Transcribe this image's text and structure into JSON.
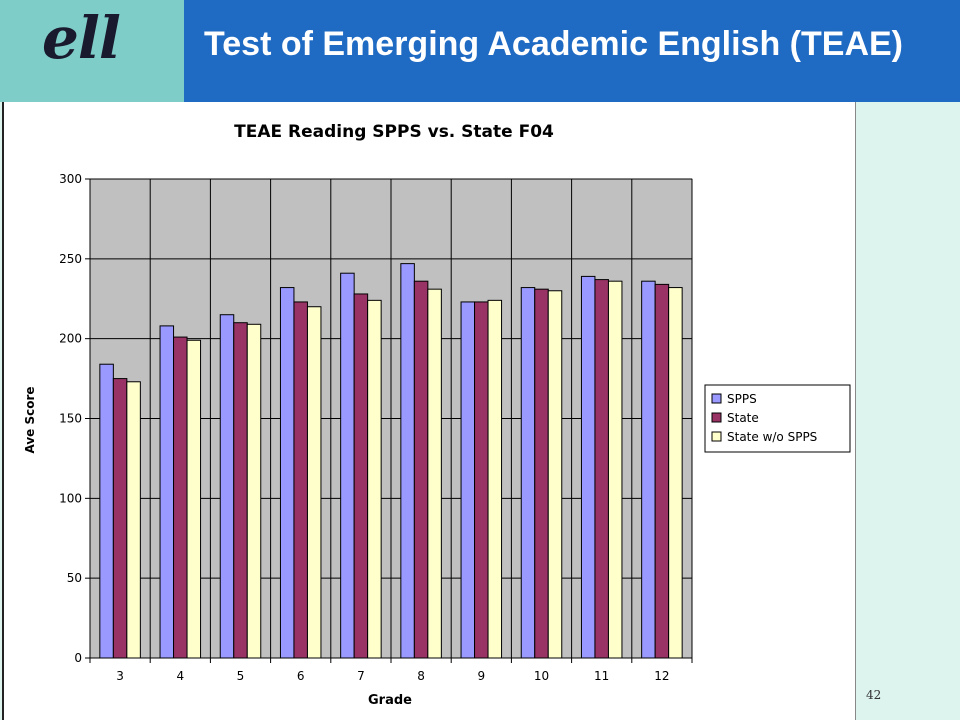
{
  "logo": {
    "text": "ell"
  },
  "slide": {
    "title": "Test of Emerging Academic English (TEAE)",
    "page_number": "42"
  },
  "colors": {
    "SPPS": "#9999ff",
    "State": "#993366",
    "State w/o SPPS": "#ffffcc",
    "plot_background": "#c0c0c0",
    "title_bar": "#1f6ac3",
    "logo_box": "#7fcdc8",
    "slide_background": "#ddf3ee"
  },
  "chart_data": {
    "type": "bar",
    "title": "TEAE Reading SPPS vs. State F04",
    "xlabel": "Grade",
    "ylabel": "Ave Score",
    "ylim": [
      0,
      300
    ],
    "yticks": [
      0,
      50,
      100,
      150,
      200,
      250,
      300
    ],
    "grid": true,
    "legend_position": "right",
    "categories": [
      "3",
      "4",
      "5",
      "6",
      "7",
      "8",
      "9",
      "10",
      "11",
      "12"
    ],
    "series": [
      {
        "name": "SPPS",
        "values": [
          184,
          208,
          215,
          232,
          241,
          247,
          223,
          232,
          239,
          236
        ]
      },
      {
        "name": "State",
        "values": [
          175,
          201,
          210,
          223,
          228,
          236,
          223,
          231,
          237,
          234
        ]
      },
      {
        "name": "State w/o SPPS",
        "values": [
          173,
          199,
          209,
          220,
          224,
          231,
          224,
          230,
          236,
          232
        ]
      }
    ]
  }
}
